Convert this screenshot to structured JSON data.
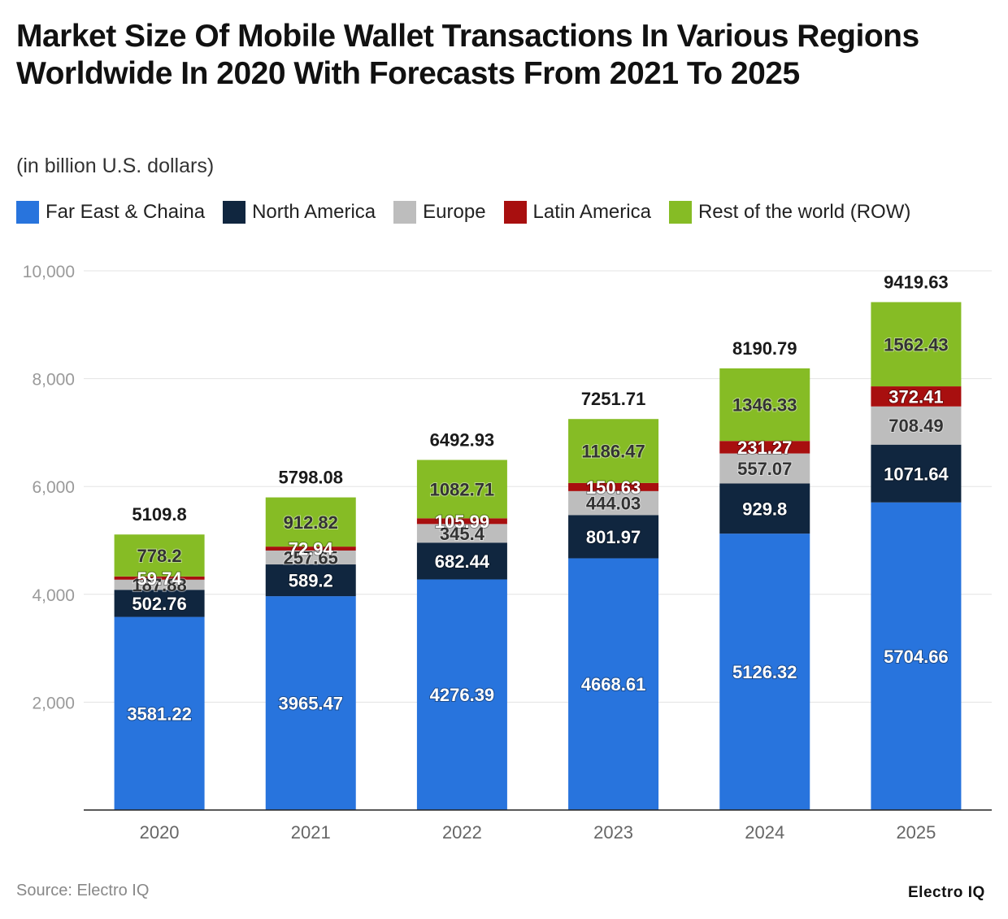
{
  "header": {
    "title": "Market Size Of Mobile Wallet Transactions In Various Regions Worldwide In 2020 With Forecasts From 2021 To 2025",
    "subtitle": "(in billion U.S. dollars)"
  },
  "footer": {
    "source": "Source: Electro IQ",
    "brand": "Electro IQ"
  },
  "chart_data": {
    "type": "bar",
    "stacked": true,
    "title": "Market Size Of Mobile Wallet Transactions In Various Regions Worldwide In 2020 With Forecasts From 2021 To 2025",
    "subtitle": "(in billion U.S. dollars)",
    "xlabel": "",
    "ylabel": "",
    "categories": [
      "2020",
      "2021",
      "2022",
      "2023",
      "2024",
      "2025"
    ],
    "ylim": [
      0,
      10000
    ],
    "yticks": [
      2000,
      4000,
      6000,
      8000,
      10000
    ],
    "ytick_labels": [
      "2,000",
      "4,000",
      "6,000",
      "8,000",
      "10,000"
    ],
    "grid": true,
    "legend_position": "top-left",
    "series": [
      {
        "name": "Far East & Chaina",
        "color": "#2874dd",
        "label_color": "#ffffff",
        "values": [
          3581.22,
          3965.47,
          4276.39,
          4668.61,
          5126.32,
          5704.66
        ]
      },
      {
        "name": "North America",
        "color": "#10263f",
        "label_color": "#ffffff",
        "values": [
          502.76,
          589.2,
          682.44,
          801.97,
          929.8,
          1071.64
        ]
      },
      {
        "name": "Europe",
        "color": "#bdbdbd",
        "label_color": "#333333",
        "values": [
          187.88,
          257.65,
          345.4,
          444.03,
          557.07,
          708.49
        ]
      },
      {
        "name": "Latin America",
        "color": "#a80f0f",
        "label_color": "#ffffff",
        "values": [
          59.74,
          72.94,
          105.99,
          150.63,
          231.27,
          372.41
        ]
      },
      {
        "name": "Rest of the world (ROW)",
        "color": "#86bc25",
        "label_color": "#333333",
        "values": [
          778.2,
          912.82,
          1082.71,
          1186.47,
          1346.33,
          1562.43
        ]
      }
    ],
    "totals": [
      5109.8,
      5798.08,
      6492.93,
      7251.71,
      8190.79,
      9419.63
    ]
  }
}
